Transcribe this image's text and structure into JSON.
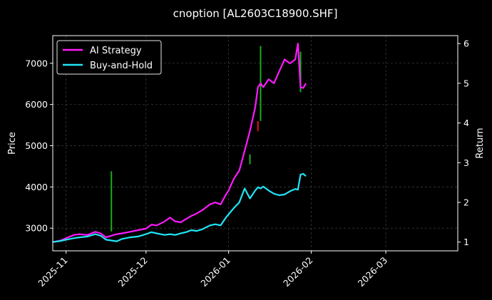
{
  "chart_data": {
    "type": "line",
    "title": "cnoption [AL2603C18900.SHF]",
    "ylabel": "Price",
    "y2label": "Return",
    "ylim": [
      2450,
      7670
    ],
    "y2lim": [
      0.78,
      6.2
    ],
    "yticks": [
      3000,
      4000,
      5000,
      6000,
      7000
    ],
    "y2ticks": [
      1,
      2,
      3,
      4,
      5,
      6
    ],
    "xlim": [
      "2025-10-27",
      "2026-03-28"
    ],
    "xticks": [
      "2025-11-01",
      "2025-12-01",
      "2026-01-01",
      "2026-02-01",
      "2026-03-01"
    ],
    "xticklabels": [
      "2025-11",
      "2025-12",
      "2026-01",
      "2026-02",
      "2026-03"
    ],
    "grid": true,
    "legend_position": "top-left",
    "series": [
      {
        "name": "AI Strategy",
        "color": "#ff1aff",
        "axis": "return",
        "x": [
          "2025-10-27",
          "2025-10-30",
          "2025-11-01",
          "2025-11-04",
          "2025-11-06",
          "2025-11-09",
          "2025-11-12",
          "2025-11-14",
          "2025-11-16",
          "2025-11-18",
          "2025-11-20",
          "2025-11-22",
          "2025-11-25",
          "2025-11-28",
          "2025-12-01",
          "2025-12-03",
          "2025-12-05",
          "2025-12-08",
          "2025-12-10",
          "2025-12-12",
          "2025-12-14",
          "2025-12-16",
          "2025-12-18",
          "2025-12-20",
          "2025-12-22",
          "2025-12-25",
          "2025-12-27",
          "2025-12-29",
          "2025-12-31",
          "2026-01-01",
          "2026-01-03",
          "2026-01-05",
          "2026-01-07",
          "2026-01-09",
          "2026-01-11",
          "2026-01-12",
          "2026-01-13",
          "2026-01-14",
          "2026-01-16",
          "2026-01-18",
          "2026-01-20",
          "2026-01-22",
          "2026-01-24",
          "2026-01-26",
          "2026-01-27",
          "2026-01-28",
          "2026-01-29",
          "2026-01-30"
        ],
        "values": [
          1.0,
          1.04,
          1.1,
          1.18,
          1.2,
          1.18,
          1.26,
          1.22,
          1.12,
          1.16,
          1.2,
          1.22,
          1.26,
          1.3,
          1.34,
          1.44,
          1.42,
          1.52,
          1.62,
          1.52,
          1.5,
          1.58,
          1.66,
          1.72,
          1.8,
          1.95,
          2.0,
          1.95,
          2.2,
          2.3,
          2.6,
          2.8,
          3.3,
          3.8,
          4.4,
          4.9,
          5.0,
          4.9,
          5.1,
          5.0,
          5.3,
          5.6,
          5.5,
          5.6,
          6.0,
          4.9,
          4.88,
          5.0
        ]
      },
      {
        "name": "Buy-and-Hold",
        "color": "#22e5f7",
        "axis": "return",
        "x": [
          "2025-10-27",
          "2025-10-30",
          "2025-11-01",
          "2025-11-04",
          "2025-11-06",
          "2025-11-09",
          "2025-11-12",
          "2025-11-14",
          "2025-11-16",
          "2025-11-18",
          "2025-11-20",
          "2025-11-22",
          "2025-11-25",
          "2025-11-28",
          "2025-12-01",
          "2025-12-03",
          "2025-12-05",
          "2025-12-08",
          "2025-12-10",
          "2025-12-12",
          "2025-12-14",
          "2025-12-16",
          "2025-12-18",
          "2025-12-20",
          "2025-12-22",
          "2025-12-25",
          "2025-12-27",
          "2025-12-29",
          "2025-12-31",
          "2026-01-01",
          "2026-01-03",
          "2026-01-05",
          "2026-01-07",
          "2026-01-09",
          "2026-01-11",
          "2026-01-12",
          "2026-01-13",
          "2026-01-14",
          "2026-01-16",
          "2026-01-18",
          "2026-01-20",
          "2026-01-22",
          "2026-01-24",
          "2026-01-26",
          "2026-01-27",
          "2026-01-28",
          "2026-01-29",
          "2026-01-30"
        ],
        "values": [
          1.0,
          1.03,
          1.06,
          1.1,
          1.12,
          1.14,
          1.2,
          1.16,
          1.06,
          1.04,
          1.02,
          1.08,
          1.12,
          1.14,
          1.2,
          1.25,
          1.22,
          1.18,
          1.2,
          1.18,
          1.22,
          1.25,
          1.3,
          1.28,
          1.32,
          1.42,
          1.45,
          1.42,
          1.62,
          1.7,
          1.86,
          2.0,
          2.35,
          2.1,
          2.3,
          2.38,
          2.35,
          2.4,
          2.3,
          2.22,
          2.18,
          2.2,
          2.28,
          2.34,
          2.32,
          2.7,
          2.72,
          2.66
        ]
      }
    ],
    "candles": {
      "axis": "price",
      "up_color": "#1faa1f",
      "down_color": "#dd1111",
      "items": [
        {
          "date": "2025-11-18",
          "low": 2920,
          "high": 4380,
          "dir": "up"
        },
        {
          "date": "2026-01-09",
          "low": 4550,
          "high": 4790,
          "dir": "up"
        },
        {
          "date": "2026-01-12",
          "low": 5350,
          "high": 5600,
          "dir": "down"
        },
        {
          "date": "2026-01-13",
          "low": 5600,
          "high": 7420,
          "dir": "up"
        },
        {
          "date": "2026-01-28",
          "low": 6300,
          "high": 7280,
          "dir": "up"
        }
      ]
    }
  }
}
